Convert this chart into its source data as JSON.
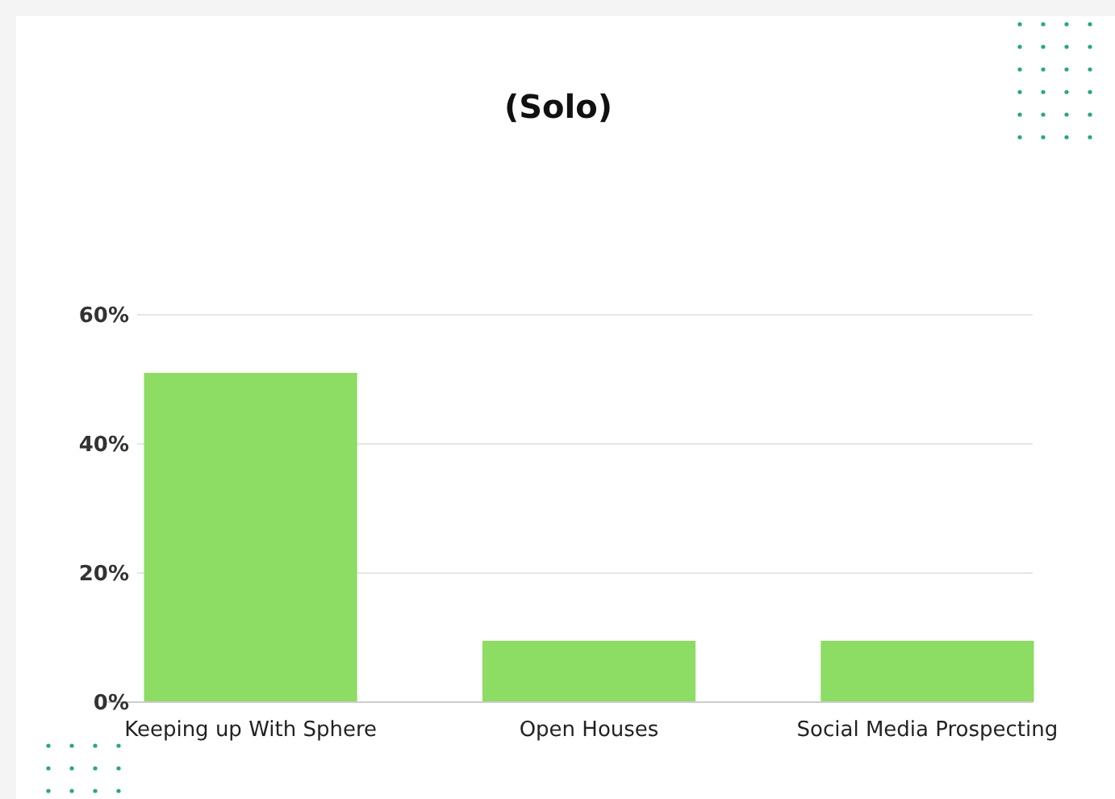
{
  "chart_data": {
    "type": "bar",
    "title": "(Solo)",
    "categories": [
      "Keeping up With Sphere",
      "Open Houses",
      "Social Media Prospecting"
    ],
    "values": [
      51,
      9.5,
      9.5
    ],
    "color": "#8ddc63",
    "ylim": [
      0,
      60
    ],
    "yticks": [
      {
        "value": 0,
        "label": "0%"
      },
      {
        "value": 20,
        "label": "20%"
      },
      {
        "value": 40,
        "label": "40%"
      },
      {
        "value": 60,
        "label": "60%"
      }
    ],
    "grid": "y"
  }
}
